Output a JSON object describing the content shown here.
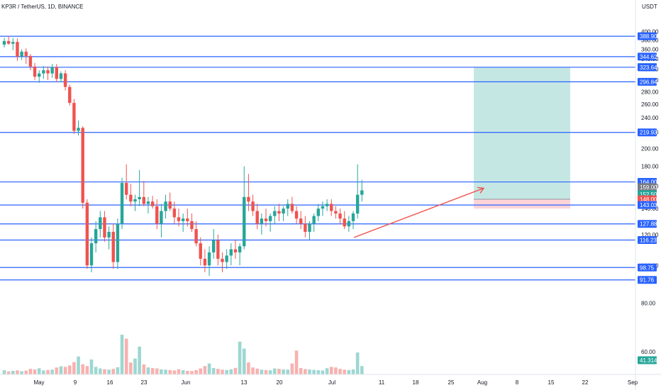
{
  "header": {
    "pair": "KP3R / TetherUS, 1D, BINANCE",
    "currency": "USDT"
  },
  "colors": {
    "up": "#26a69a",
    "down": "#ef5350",
    "level_line": "#2962ff",
    "target_zone": "#b2dfdb",
    "stop_zone": "#ffcdd2",
    "arrow": "#ef5350",
    "axis_text": "#131722"
  },
  "chart_data": {
    "type": "candlestick",
    "title": "KP3R / TetherUS, 1D, BINANCE",
    "ylabel": "USDT",
    "y_scale": "log",
    "ylim": [
      57,
      425
    ],
    "y_ticks": [
      "400.00",
      "380.00",
      "360.00",
      "340.00",
      "320.00",
      "300.00",
      "280.00",
      "260.00",
      "240.00",
      "220.00",
      "200.00",
      "180.00",
      "160.00",
      "140.00",
      "120.00",
      "100.00",
      "80.00",
      "60.00"
    ],
    "x_ticks": [
      "May",
      "9",
      "16",
      "23",
      "Jun",
      "13",
      "20",
      "Jul",
      "11",
      "18",
      "25",
      "Aug",
      "8",
      "15",
      "22",
      "Sep"
    ],
    "horizontal_levels": [
      "388.90",
      "344.62",
      "323.64",
      "296.84",
      "219.93",
      "164.00",
      "143.03",
      "127.88",
      "116.23",
      "98.75",
      "91.76"
    ],
    "price_tags": [
      {
        "label": "388.90",
        "color": "#2962ff"
      },
      {
        "label": "344.62",
        "color": "#2962ff"
      },
      {
        "label": "323.87",
        "color": "#26a69a"
      },
      {
        "label": "323.64",
        "color": "#2962ff"
      },
      {
        "label": "296.84",
        "color": "#2962ff"
      },
      {
        "label": "219.93",
        "color": "#2962ff"
      },
      {
        "label": "164.00",
        "color": "#2962ff"
      },
      {
        "label": "159.00",
        "color": "#787b86"
      },
      {
        "label": "152.50",
        "color": "#26a69a"
      },
      {
        "label": "148.00",
        "color": "#ef5350"
      },
      {
        "label": "143.03",
        "color": "#2962ff"
      },
      {
        "label": "127.88",
        "color": "#2962ff"
      },
      {
        "label": "116.23",
        "color": "#2962ff"
      },
      {
        "label": "98.75",
        "color": "#2962ff"
      },
      {
        "label": "91.76",
        "color": "#2962ff"
      },
      {
        "label": "41.314K",
        "color": "#26a69a"
      }
    ],
    "position": {
      "type": "long",
      "entry": 148.0,
      "target": 323.87,
      "stop": 140.0
    },
    "candles": [
      [
        370,
        385,
        364,
        378
      ],
      [
        378,
        390,
        370,
        372
      ],
      [
        372,
        385,
        358,
        376
      ],
      [
        376,
        384,
        336,
        345
      ],
      [
        345,
        360,
        338,
        355
      ],
      [
        355,
        362,
        330,
        346
      ],
      [
        346,
        350,
        318,
        325
      ],
      [
        325,
        332,
        300,
        306
      ],
      [
        306,
        318,
        295,
        312
      ],
      [
        312,
        326,
        302,
        318
      ],
      [
        318,
        325,
        300,
        312
      ],
      [
        312,
        330,
        304,
        324
      ],
      [
        324,
        330,
        296,
        302
      ],
      [
        302,
        316,
        296,
        312
      ],
      [
        312,
        318,
        282,
        288
      ],
      [
        288,
        292,
        258,
        262
      ],
      [
        262,
        268,
        218,
        222
      ],
      [
        222,
        236,
        216,
        226
      ],
      [
        226,
        228,
        140,
        145
      ],
      [
        145,
        148,
        98,
        100
      ],
      [
        100,
        118,
        96,
        114
      ],
      [
        114,
        130,
        108,
        124
      ],
      [
        124,
        138,
        118,
        133
      ],
      [
        133,
        138,
        115,
        118
      ],
      [
        118,
        126,
        110,
        122
      ],
      [
        122,
        128,
        98,
        102
      ],
      [
        102,
        132,
        98,
        128
      ],
      [
        128,
        168,
        124,
        163
      ],
      [
        163,
        182,
        148,
        152
      ],
      [
        152,
        162,
        142,
        146
      ],
      [
        146,
        152,
        138,
        148
      ],
      [
        148,
        176,
        142,
        150
      ],
      [
        150,
        165,
        142,
        144
      ],
      [
        144,
        150,
        136,
        146
      ],
      [
        146,
        151,
        140,
        142
      ],
      [
        142,
        148,
        124,
        128
      ],
      [
        128,
        144,
        118,
        138
      ],
      [
        138,
        152,
        132,
        146
      ],
      [
        146,
        154,
        138,
        140
      ],
      [
        140,
        146,
        128,
        133
      ],
      [
        133,
        140,
        126,
        130
      ],
      [
        130,
        136,
        122,
        132
      ],
      [
        132,
        140,
        126,
        130
      ],
      [
        130,
        136,
        122,
        124
      ],
      [
        124,
        130,
        112,
        114
      ],
      [
        114,
        118,
        100,
        104
      ],
      [
        104,
        110,
        96,
        100
      ],
      [
        100,
        112,
        94,
        108
      ],
      [
        108,
        124,
        104,
        116
      ],
      [
        116,
        120,
        100,
        104
      ],
      [
        104,
        108,
        96,
        102
      ],
      [
        102,
        110,
        98,
        106
      ],
      [
        106,
        114,
        100,
        110
      ],
      [
        110,
        116,
        104,
        108
      ],
      [
        108,
        114,
        100,
        112
      ],
      [
        112,
        180,
        110,
        150
      ],
      [
        150,
        172,
        138,
        146
      ],
      [
        146,
        152,
        134,
        138
      ],
      [
        138,
        144,
        124,
        128
      ],
      [
        128,
        136,
        120,
        132
      ],
      [
        132,
        140,
        126,
        130
      ],
      [
        130,
        136,
        122,
        134
      ],
      [
        134,
        142,
        128,
        138
      ],
      [
        138,
        144,
        130,
        136
      ],
      [
        136,
        142,
        130,
        140
      ],
      [
        140,
        148,
        134,
        144
      ],
      [
        144,
        150,
        136,
        138
      ],
      [
        138,
        142,
        128,
        132
      ],
      [
        132,
        138,
        124,
        128
      ],
      [
        128,
        134,
        118,
        122
      ],
      [
        122,
        130,
        116,
        128
      ],
      [
        128,
        136,
        122,
        134
      ],
      [
        134,
        144,
        130,
        140
      ],
      [
        140,
        146,
        134,
        142
      ],
      [
        142,
        148,
        138,
        144
      ],
      [
        144,
        148,
        134,
        138
      ],
      [
        138,
        142,
        132,
        136
      ],
      [
        136,
        140,
        128,
        132
      ],
      [
        132,
        138,
        124,
        126
      ],
      [
        126,
        134,
        122,
        130
      ],
      [
        130,
        138,
        124,
        136
      ],
      [
        136,
        182,
        132,
        152
      ],
      [
        152,
        166,
        146,
        156
      ]
    ],
    "volumes": [
      2.1,
      1.5,
      1.8,
      2.0,
      1.6,
      1.9,
      2.8,
      2.5,
      3.1,
      2.0,
      2.2,
      2.4,
      3.5,
      4.1,
      3.8,
      4.5,
      6.2,
      9.0,
      5.1,
      4.2,
      7.5,
      3.8,
      3.0,
      2.6,
      2.4,
      2.8,
      3.6,
      20.0,
      18.0,
      6.0,
      8.0,
      14.0,
      5.0,
      3.5,
      3.2,
      3.0,
      2.5,
      2.4,
      2.2,
      2.0,
      2.6,
      2.1,
      1.8,
      1.7,
      2.2,
      3.0,
      4.2,
      5.5,
      3.2,
      2.8,
      2.4,
      2.2,
      2.6,
      3.3,
      16.5,
      13.0,
      6.0,
      3.5,
      2.9,
      2.4,
      2.2,
      2.1,
      3.0,
      2.8,
      2.5,
      2.4,
      5.5,
      12.0,
      3.2,
      2.7,
      2.5,
      2.3,
      2.1,
      2.0,
      3.1,
      3.8,
      3.5,
      2.8,
      2.4,
      2.2,
      2.5,
      11.0,
      4.2
    ]
  }
}
